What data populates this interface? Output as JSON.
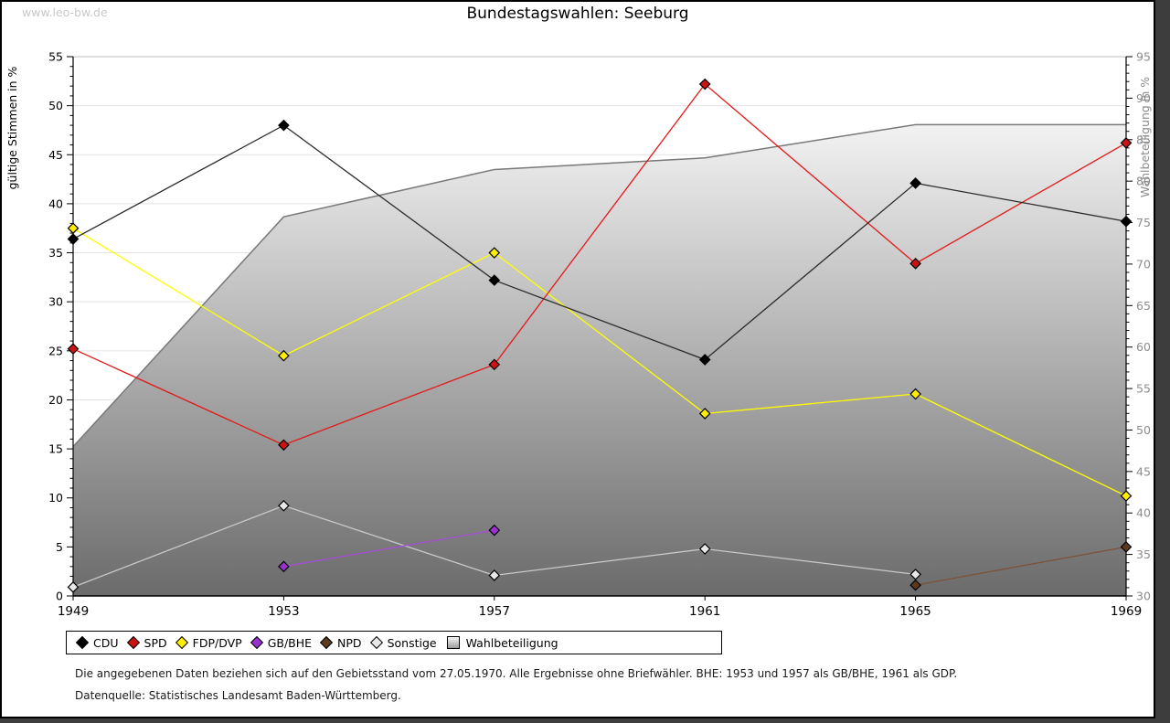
{
  "watermark": "www.leo-bw.de",
  "title": "Bundestagswahlen: Seeburg",
  "chart_data": {
    "type": "line",
    "x": [
      1949,
      1953,
      1957,
      1961,
      1965,
      1969
    ],
    "left_axis": {
      "label": "gültige Stimmen in %",
      "min": 0,
      "max": 55,
      "tick_step": 5,
      "minor_step": 1
    },
    "right_axis": {
      "label": "Wahlbeteiligung in %",
      "min": 30,
      "max": 95,
      "tick_step": 5,
      "minor_step": 1
    },
    "grid": true,
    "series": [
      {
        "name": "CDU",
        "axis": "left",
        "line_color": "#2b2b2b",
        "marker_color": "#000000",
        "values": [
          36.4,
          48.0,
          32.2,
          24.1,
          42.1,
          38.2
        ]
      },
      {
        "name": "SPD",
        "axis": "left",
        "line_color": "#e51717",
        "marker_color": "#cc1212",
        "values": [
          25.2,
          15.4,
          23.6,
          52.2,
          33.9,
          46.2
        ]
      },
      {
        "name": "FDP/DVP",
        "axis": "left",
        "line_color": "#ffff00",
        "marker_color": "#ffee00",
        "values": [
          37.5,
          24.5,
          35.0,
          18.6,
          20.6,
          10.2
        ]
      },
      {
        "name": "GB/BHE",
        "axis": "left",
        "line_color": "#a64fd6",
        "marker_color": "#9932cc",
        "values": [
          null,
          3.0,
          6.7,
          null,
          null,
          null
        ]
      },
      {
        "name": "NPD",
        "axis": "left",
        "line_color": "#7b5237",
        "marker_color": "#5b3a1e",
        "values": [
          null,
          null,
          null,
          null,
          1.1,
          5.0
        ]
      },
      {
        "name": "Sonstige",
        "axis": "left",
        "line_color": "#c9c9c9",
        "marker_color": "#e8e8e8",
        "values": [
          0.9,
          9.2,
          2.1,
          4.8,
          2.2,
          null
        ]
      }
    ],
    "area_series": {
      "name": "Wahlbeteiligung",
      "axis": "right",
      "values": [
        48.0,
        75.7,
        81.4,
        82.8,
        86.8,
        86.8
      ],
      "stroke": "#787878",
      "fill_top": "#fbfbfb",
      "fill_bottom": "#6a6a6a"
    }
  },
  "legend": {
    "items": [
      {
        "label": "CDU",
        "color": "#000000",
        "shape": "diamond"
      },
      {
        "label": "SPD",
        "color": "#cc1212",
        "shape": "diamond"
      },
      {
        "label": "FDP/DVP",
        "color": "#ffee00",
        "shape": "diamond"
      },
      {
        "label": "GB/BHE",
        "color": "#9932cc",
        "shape": "diamond"
      },
      {
        "label": "NPD",
        "color": "#5b3a1e",
        "shape": "diamond"
      },
      {
        "label": "Sonstige",
        "color": "#e8e8e8",
        "shape": "diamond"
      },
      {
        "label": "Wahlbeteiligung",
        "color": "gradient",
        "shape": "square"
      }
    ]
  },
  "footnotes": {
    "line1": "Die angegebenen Daten beziehen sich auf den Gebietsstand vom 27.05.1970. Alle Ergebnisse ohne Briefwähler. BHE: 1953 und 1957 als GB/BHE, 1961 als GDP.",
    "line2": "Datenquelle: Statistisches Landesamt Baden-Württemberg."
  }
}
